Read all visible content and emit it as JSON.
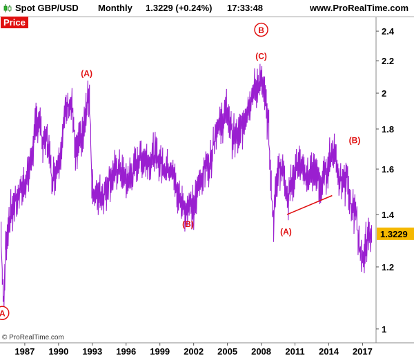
{
  "header": {
    "title": "Spot GBP/USD",
    "period": "Monthly",
    "price_change": "1.3229 (+0.24%)",
    "time": "17:33:48",
    "site": "www.ProRealTime.com",
    "icon": "candlestick-icon"
  },
  "panel_label": "Price",
  "copyright": "© ProRealTime.com",
  "colors": {
    "series": "#9a1fd0",
    "annotation": "#e01010",
    "last_price_bg": "#f5b800",
    "grid": "#cccccc"
  },
  "chart_data": {
    "type": "line",
    "title": "Spot GBP/USD",
    "x_ticks": [
      "1987",
      "1990",
      "1993",
      "1996",
      "1999",
      "2002",
      "2005",
      "2008",
      "2011",
      "2014",
      "2017"
    ],
    "y_ticks": [
      "1",
      "1.2",
      "1.4",
      "1.6",
      "1.8",
      "2",
      "2.2",
      "2.4"
    ],
    "ylim": [
      0.96,
      2.5
    ],
    "xlim": [
      1984.8,
      2018.2
    ],
    "scale": "log",
    "grid": false,
    "last_price": "1.3229",
    "series": [
      {
        "values": [
          [
            1984.9,
            1.32
          ],
          [
            1985.0,
            1.18
          ],
          [
            1985.15,
            1.06
          ],
          [
            1985.3,
            1.28
          ],
          [
            1985.6,
            1.38
          ],
          [
            1986.0,
            1.44
          ],
          [
            1986.5,
            1.48
          ],
          [
            1987.0,
            1.54
          ],
          [
            1987.5,
            1.62
          ],
          [
            1988.0,
            1.82
          ],
          [
            1988.3,
            1.86
          ],
          [
            1988.6,
            1.7
          ],
          [
            1989.0,
            1.76
          ],
          [
            1989.4,
            1.56
          ],
          [
            1989.8,
            1.6
          ],
          [
            1990.2,
            1.7
          ],
          [
            1990.6,
            1.88
          ],
          [
            1990.9,
            1.94
          ],
          [
            1991.2,
            1.92
          ],
          [
            1991.5,
            1.66
          ],
          [
            1991.8,
            1.72
          ],
          [
            1992.2,
            1.78
          ],
          [
            1992.6,
            1.96
          ],
          [
            1992.75,
            2.0
          ],
          [
            1992.95,
            1.55
          ],
          [
            1993.2,
            1.46
          ],
          [
            1993.6,
            1.5
          ],
          [
            1994.0,
            1.48
          ],
          [
            1994.5,
            1.56
          ],
          [
            1995.0,
            1.58
          ],
          [
            1995.5,
            1.6
          ],
          [
            1996.0,
            1.54
          ],
          [
            1996.6,
            1.58
          ],
          [
            1997.0,
            1.64
          ],
          [
            1997.5,
            1.66
          ],
          [
            1998.0,
            1.64
          ],
          [
            1998.5,
            1.67
          ],
          [
            1999.0,
            1.64
          ],
          [
            1999.5,
            1.6
          ],
          [
            2000.0,
            1.61
          ],
          [
            2000.5,
            1.5
          ],
          [
            2000.9,
            1.45
          ],
          [
            2001.3,
            1.42
          ],
          [
            2001.6,
            1.44
          ],
          [
            2002.0,
            1.43
          ],
          [
            2002.5,
            1.53
          ],
          [
            2003.0,
            1.6
          ],
          [
            2003.5,
            1.64
          ],
          [
            2004.0,
            1.8
          ],
          [
            2004.5,
            1.84
          ],
          [
            2005.0,
            1.9
          ],
          [
            2005.5,
            1.76
          ],
          [
            2006.0,
            1.76
          ],
          [
            2006.5,
            1.86
          ],
          [
            2007.0,
            1.96
          ],
          [
            2007.5,
            2.02
          ],
          [
            2007.9,
            2.08
          ],
          [
            2008.3,
            1.98
          ],
          [
            2008.6,
            1.86
          ],
          [
            2008.9,
            1.5
          ],
          [
            2009.1,
            1.38
          ],
          [
            2009.5,
            1.62
          ],
          [
            2010.0,
            1.58
          ],
          [
            2010.4,
            1.47
          ],
          [
            2010.8,
            1.57
          ],
          [
            2011.3,
            1.63
          ],
          [
            2011.8,
            1.56
          ],
          [
            2012.3,
            1.58
          ],
          [
            2012.8,
            1.61
          ],
          [
            2013.2,
            1.52
          ],
          [
            2013.6,
            1.56
          ],
          [
            2014.0,
            1.64
          ],
          [
            2014.5,
            1.7
          ],
          [
            2014.9,
            1.57
          ],
          [
            2015.3,
            1.52
          ],
          [
            2015.6,
            1.56
          ],
          [
            2016.0,
            1.42
          ],
          [
            2016.4,
            1.44
          ],
          [
            2016.6,
            1.31
          ],
          [
            2016.8,
            1.24
          ],
          [
            2017.0,
            1.23
          ],
          [
            2017.3,
            1.28
          ],
          [
            2017.6,
            1.31
          ],
          [
            2017.8,
            1.3229
          ]
        ]
      }
    ],
    "annotations": [
      {
        "text": "A",
        "x": 1985.0,
        "y": 1.048,
        "circled": true
      },
      {
        "text": "(A)",
        "x": 1992.5,
        "y": 2.12,
        "circled": false
      },
      {
        "text": "(B)",
        "x": 2001.5,
        "y": 1.36,
        "circled": false
      },
      {
        "text": "B",
        "x": 2008.0,
        "y": 2.41,
        "circled": true
      },
      {
        "text": "(C)",
        "x": 2008.0,
        "y": 2.23,
        "circled": false
      },
      {
        "text": "(A)",
        "x": 2010.2,
        "y": 1.33,
        "circled": false
      },
      {
        "text": "(B)",
        "x": 2016.3,
        "y": 1.74,
        "circled": false
      }
    ],
    "trendline": {
      "from": [
        2010.3,
        1.4
      ],
      "to": [
        2014.3,
        1.48
      ]
    }
  }
}
